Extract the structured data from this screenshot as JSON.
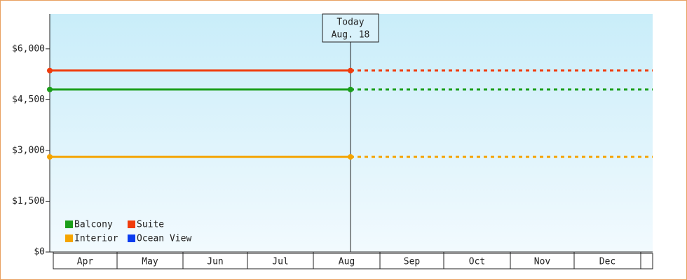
{
  "chart_data": {
    "type": "line",
    "categories": [
      "Apr",
      "May",
      "Jun",
      "Jul",
      "Aug",
      "Sep",
      "Oct",
      "Nov",
      "Dec"
    ],
    "today": {
      "line1": "Today",
      "line2": "Aug. 18"
    },
    "ylim": [
      0,
      7030
    ],
    "yticks": [
      {
        "value": 0,
        "label": "$0"
      },
      {
        "value": 1500,
        "label": "$1,500"
      },
      {
        "value": 3000,
        "label": "$3,000"
      },
      {
        "value": 4500,
        "label": "$4,500"
      },
      {
        "value": 6000,
        "label": "$6,000"
      }
    ],
    "series": [
      {
        "name": "Balcony",
        "color": "#1a9e1a",
        "value": 4800
      },
      {
        "name": "Suite",
        "color": "#f03c0c",
        "value": 5360
      },
      {
        "name": "Interior",
        "color": "#f5a400",
        "value": 2810
      },
      {
        "name": "Ocean View",
        "color": "#0a3cf0",
        "value": null
      }
    ]
  }
}
